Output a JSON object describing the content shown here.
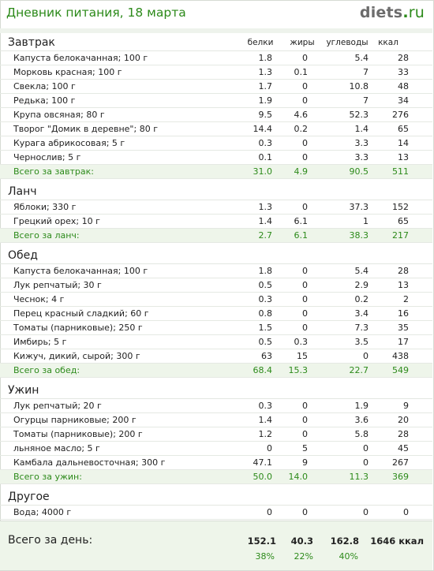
{
  "header": {
    "title": "Дневник питания, 18 марта",
    "logo": {
      "name": "diets",
      "dot": ".",
      "tld": "ru"
    }
  },
  "columns": {
    "protein": "белки",
    "fat": "жиры",
    "carbs": "углеводы",
    "kcal": "ккал"
  },
  "sections": [
    {
      "title": "Завтрак",
      "show_columns": true,
      "items": [
        {
          "name": "Капуста белокачанная; 100 г",
          "protein": "1.8",
          "fat": "0",
          "carbs": "5.4",
          "kcal": "28"
        },
        {
          "name": "Морковь красная; 100 г",
          "protein": "1.3",
          "fat": "0.1",
          "carbs": "7",
          "kcal": "33"
        },
        {
          "name": "Свекла; 100 г",
          "protein": "1.7",
          "fat": "0",
          "carbs": "10.8",
          "kcal": "48"
        },
        {
          "name": "Редька; 100 г",
          "protein": "1.9",
          "fat": "0",
          "carbs": "7",
          "kcal": "34"
        },
        {
          "name": "Крупа овсяная; 80 г",
          "protein": "9.5",
          "fat": "4.6",
          "carbs": "52.3",
          "kcal": "276"
        },
        {
          "name": "Творог \"Домик в деревне\"; 80 г",
          "protein": "14.4",
          "fat": "0.2",
          "carbs": "1.4",
          "kcal": "65"
        },
        {
          "name": "Курага абрикосовая; 5 г",
          "protein": "0.3",
          "fat": "0",
          "carbs": "3.3",
          "kcal": "14"
        },
        {
          "name": "Чернослив; 5 г",
          "protein": "0.1",
          "fat": "0",
          "carbs": "3.3",
          "kcal": "13"
        }
      ],
      "total": {
        "name": "Всего за завтрак:",
        "protein": "31.0",
        "fat": "4.9",
        "carbs": "90.5",
        "kcal": "511"
      }
    },
    {
      "title": "Ланч",
      "items": [
        {
          "name": "Яблоки; 330 г",
          "protein": "1.3",
          "fat": "0",
          "carbs": "37.3",
          "kcal": "152"
        },
        {
          "name": "Грецкий орех; 10 г",
          "protein": "1.4",
          "fat": "6.1",
          "carbs": "1",
          "kcal": "65"
        }
      ],
      "total": {
        "name": "Всего за ланч:",
        "protein": "2.7",
        "fat": "6.1",
        "carbs": "38.3",
        "kcal": "217"
      }
    },
    {
      "title": "Обед",
      "items": [
        {
          "name": "Капуста белокачанная; 100 г",
          "protein": "1.8",
          "fat": "0",
          "carbs": "5.4",
          "kcal": "28"
        },
        {
          "name": "Лук репчатый; 30 г",
          "protein": "0.5",
          "fat": "0",
          "carbs": "2.9",
          "kcal": "13"
        },
        {
          "name": "Чеснок; 4 г",
          "protein": "0.3",
          "fat": "0",
          "carbs": "0.2",
          "kcal": "2"
        },
        {
          "name": "Перец красный сладкий; 60 г",
          "protein": "0.8",
          "fat": "0",
          "carbs": "3.4",
          "kcal": "16"
        },
        {
          "name": "Томаты (парниковые); 250 г",
          "protein": "1.5",
          "fat": "0",
          "carbs": "7.3",
          "kcal": "35"
        },
        {
          "name": "Имбирь; 5 г",
          "protein": "0.5",
          "fat": "0.3",
          "carbs": "3.5",
          "kcal": "17"
        },
        {
          "name": "Кижуч, дикий, сырой; 300 г",
          "protein": "63",
          "fat": "15",
          "carbs": "0",
          "kcal": "438"
        }
      ],
      "total": {
        "name": "Всего за обед:",
        "protein": "68.4",
        "fat": "15.3",
        "carbs": "22.7",
        "kcal": "549"
      }
    },
    {
      "title": "Ужин",
      "items": [
        {
          "name": "Лук репчатый; 20 г",
          "protein": "0.3",
          "fat": "0",
          "carbs": "1.9",
          "kcal": "9"
        },
        {
          "name": "Огурцы парниковые; 200 г",
          "protein": "1.4",
          "fat": "0",
          "carbs": "3.6",
          "kcal": "20"
        },
        {
          "name": "Томаты (парниковые); 200 г",
          "protein": "1.2",
          "fat": "0",
          "carbs": "5.8",
          "kcal": "28"
        },
        {
          "name": "льняное масло; 5 г",
          "protein": "0",
          "fat": "5",
          "carbs": "0",
          "kcal": "45"
        },
        {
          "name": "Камбала дальневосточная; 300 г",
          "protein": "47.1",
          "fat": "9",
          "carbs": "0",
          "kcal": "267"
        }
      ],
      "total": {
        "name": "Всего за ужин:",
        "protein": "50.0",
        "fat": "14.0",
        "carbs": "11.3",
        "kcal": "369"
      }
    },
    {
      "title": "Другое",
      "items": [
        {
          "name": "Вода; 4000 г",
          "protein": "0",
          "fat": "0",
          "carbs": "0",
          "kcal": "0"
        }
      ]
    }
  ],
  "day_total": {
    "label": "Всего за день:",
    "protein": "152.1",
    "fat": "40.3",
    "carbs": "162.8",
    "kcal": "1646 ккал",
    "protein_pct": "38%",
    "fat_pct": "22%",
    "carbs_pct": "40%"
  },
  "colors": {
    "accent": "#2c8a1a",
    "total_bg": "#eef5ea"
  }
}
